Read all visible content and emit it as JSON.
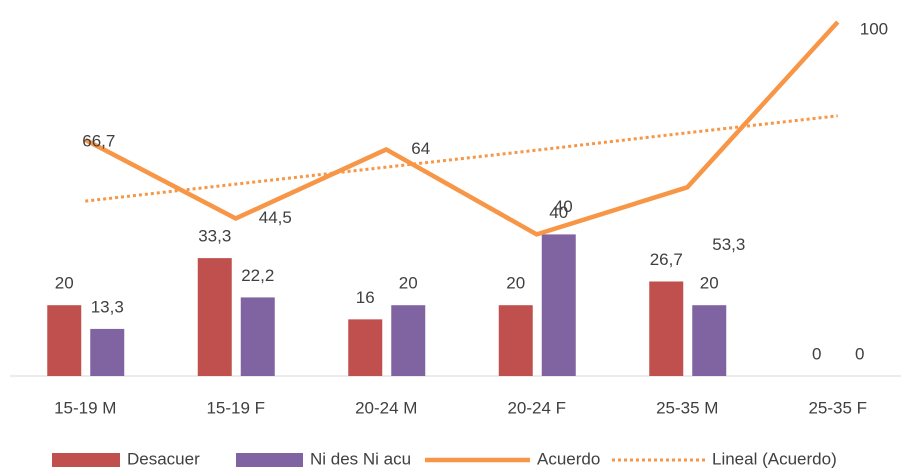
{
  "chart_data": {
    "type": "bar_line",
    "categories": [
      "15-19 M",
      "15-19 F",
      "20-24 M",
      "20-24 F",
      "25-35 M",
      "25-35 F"
    ],
    "ylim": [
      0,
      100
    ],
    "series": [
      {
        "name": "Desacuer",
        "type": "bar",
        "color": "#c0504d",
        "values": [
          20,
          33.3,
          16,
          20,
          26.7,
          0
        ],
        "value_labels": [
          "20",
          "33,3",
          "16",
          "20",
          "26,7",
          "0"
        ]
      },
      {
        "name": "Ni des Ni acu",
        "type": "bar",
        "color": "#8064a2",
        "values": [
          13.3,
          22.2,
          20,
          40,
          20,
          0
        ],
        "value_labels": [
          "13,3",
          "22,2",
          "20",
          "40",
          "20",
          "0"
        ]
      },
      {
        "name": "Acuerdo",
        "type": "line",
        "color": "#f79646",
        "values": [
          66.7,
          44.5,
          64,
          40,
          53.3,
          100
        ],
        "value_labels": [
          "66,7",
          "44,5",
          "64",
          "40",
          "53,3",
          "100"
        ]
      },
      {
        "name": "Lineal (Acuerdo)",
        "type": "trendline",
        "color": "#f79646",
        "values": [
          49.4,
          54.2,
          59.0,
          63.8,
          68.7,
          73.5
        ]
      }
    ],
    "legend": "bottom"
  }
}
